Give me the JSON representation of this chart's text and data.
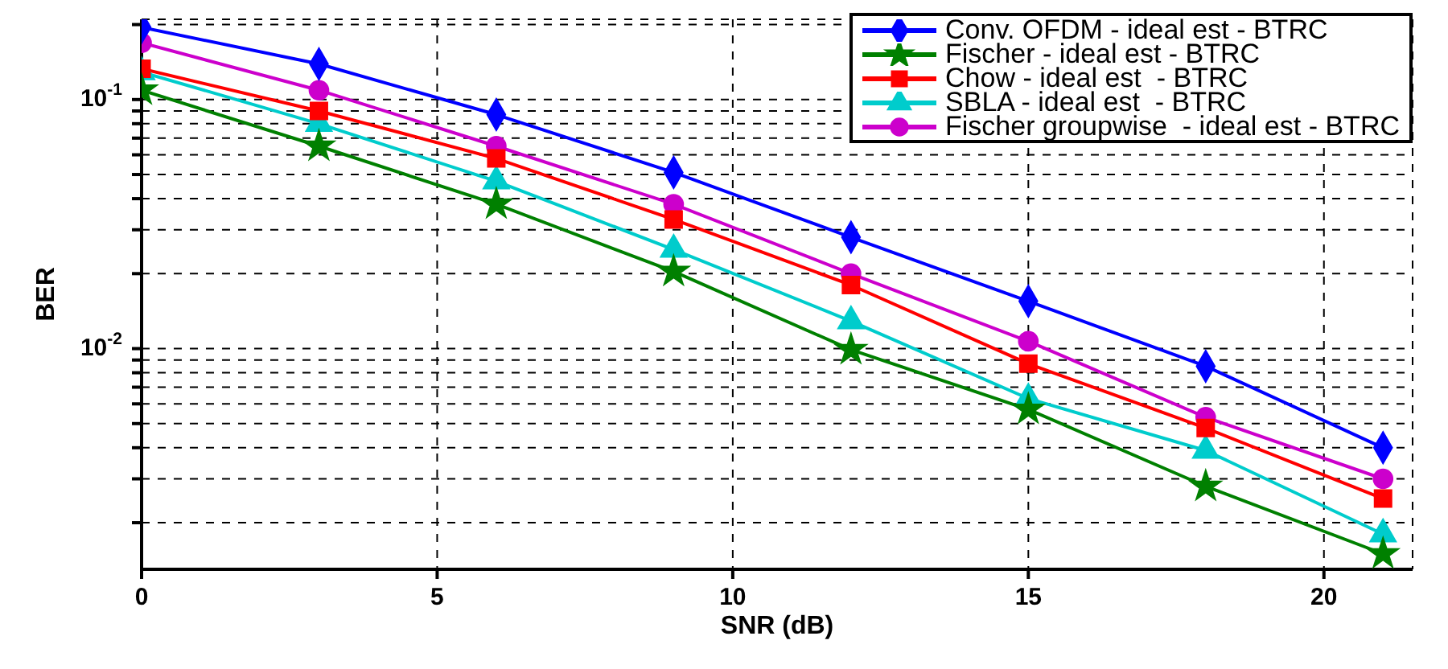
{
  "chart_data": {
    "type": "line",
    "xlabel": "SNR (dB)",
    "ylabel": "BER",
    "log": "y",
    "grid": true,
    "legend": "top right",
    "line_style": "solid",
    "xlim": [
      0,
      21.5
    ],
    "xticks": [
      0,
      5,
      10,
      15,
      20
    ],
    "ylim": [
      0.0013,
      0.21
    ],
    "yticks": [
      {
        "value": 0.2,
        "label": null
      },
      {
        "value": 0.1,
        "label": "10$^{-1}$"
      },
      {
        "value": 0.09,
        "label": null
      },
      {
        "value": 0.08,
        "label": null
      },
      {
        "value": 0.07,
        "label": null
      },
      {
        "value": 0.06,
        "label": null
      },
      {
        "value": 0.05,
        "label": null
      },
      {
        "value": 0.04,
        "label": null
      },
      {
        "value": 0.03,
        "label": null
      },
      {
        "value": 0.02,
        "label": null
      },
      {
        "value": 0.01,
        "label": "10$^{-2}$"
      },
      {
        "value": 0.009,
        "label": null
      },
      {
        "value": 0.008,
        "label": null
      },
      {
        "value": 0.007,
        "label": null
      },
      {
        "value": 0.006,
        "label": null
      },
      {
        "value": 0.005,
        "label": null
      },
      {
        "value": 0.004,
        "label": null
      },
      {
        "value": 0.003,
        "label": null
      },
      {
        "value": 0.002,
        "label": null
      }
    ],
    "x": [
      0,
      3,
      6,
      9,
      12,
      15,
      18,
      21
    ],
    "series": [
      {
        "name": "Conv. OFDM - ideal est - BTRC",
        "color": "#0000ff",
        "marker": "diamond",
        "values": [
          0.195,
          0.139,
          0.087,
          0.051,
          0.028,
          0.0155,
          0.0085,
          0.004
        ]
      },
      {
        "name": "Fischer - ideal est - BTRC",
        "color": "#008000",
        "marker": "star",
        "values": [
          0.109,
          0.065,
          0.038,
          0.0204,
          0.0099,
          0.0057,
          0.0028,
          0.0015
        ]
      },
      {
        "name": "Chow - ideal est  - BTRC",
        "color": "#ff0000",
        "marker": "square",
        "values": [
          0.133,
          0.09,
          0.058,
          0.033,
          0.018,
          0.0087,
          0.0048,
          0.0025
        ]
      },
      {
        "name": "SBLA - ideal est  - BTRC",
        "color": "#00cccc",
        "marker": "triangle",
        "values": [
          0.129,
          0.08,
          0.047,
          0.025,
          0.0129,
          0.0063,
          0.0039,
          0.0018
        ]
      },
      {
        "name": "Fischer groupwise  - ideal est - BTRC",
        "color": "#cc00cc",
        "marker": "circle",
        "values": [
          0.169,
          0.109,
          0.065,
          0.038,
          0.02,
          0.0107,
          0.0053,
          0.003
        ]
      }
    ]
  }
}
